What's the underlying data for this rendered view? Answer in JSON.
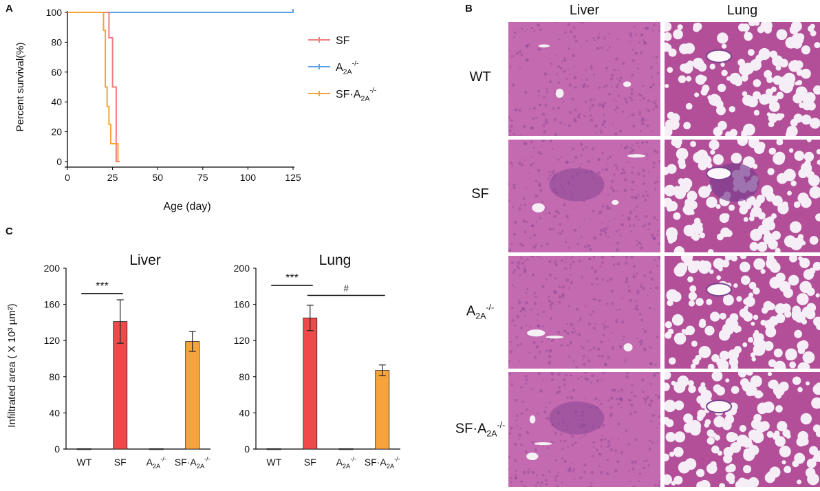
{
  "panel_labels": [
    "A",
    "B",
    "C"
  ],
  "panel_a": {
    "ylabel": "Percent survival(%)",
    "xlabel": "Age (day)",
    "chart_data": {
      "type": "line",
      "subtype": "kaplan-meier step",
      "xlim": [
        0,
        125
      ],
      "ylim": [
        0,
        100
      ],
      "xticks": [
        0,
        25,
        50,
        75,
        100,
        125
      ],
      "yticks": [
        0,
        20,
        40,
        60,
        80,
        100
      ],
      "legend_position": "right",
      "series": [
        {
          "name": "SF",
          "base": "SF",
          "sub": "",
          "sup": "",
          "color": "#f07c7c",
          "x": [
            0,
            23,
            23,
            25,
            25,
            27,
            27,
            29,
            29
          ],
          "y": [
            100,
            100,
            83,
            83,
            50,
            50,
            0,
            0,
            0
          ]
        },
        {
          "name": "A2A-/-",
          "base": "A",
          "sub": "2A",
          "sup": "-/-",
          "color": "#5aa0e6",
          "x": [
            0,
            125
          ],
          "y": [
            100,
            100
          ]
        },
        {
          "name": "SF·A2A-/-",
          "base": "SF·A",
          "sub": "2A",
          "sup": "-/-",
          "color": "#f7a33c",
          "x": [
            0,
            20,
            20,
            21,
            21,
            22,
            22,
            23,
            23,
            24,
            24,
            25,
            25,
            28,
            28
          ],
          "y": [
            100,
            100,
            88,
            88,
            50,
            50,
            37,
            37,
            25,
            25,
            12,
            12,
            12,
            12,
            0
          ]
        }
      ]
    }
  },
  "panel_b": {
    "columns": [
      "Liver",
      "Lung"
    ],
    "rows": [
      {
        "base": "WT",
        "sub": "",
        "sup": ""
      },
      {
        "base": "SF",
        "sub": "",
        "sup": ""
      },
      {
        "base": "A",
        "sub": "2A",
        "sup": "-/-"
      },
      {
        "base": "SF·A",
        "sub": "2A",
        "sup": "-/-"
      }
    ],
    "tissue_colors": {
      "liver": "#c46ab0",
      "lung_bg": "#f6eef6",
      "lung_tissue": "#b24f98",
      "stain_dark": "#7b3f8e"
    }
  },
  "panel_c": {
    "ylabel": "Infiltrated  area ( X 10³ µm²)",
    "chart_data": [
      {
        "type": "bar",
        "title": "Liver",
        "categories": [
          {
            "base": "WT",
            "sub": "",
            "sup": ""
          },
          {
            "base": "SF",
            "sub": "",
            "sup": ""
          },
          {
            "base": "A",
            "sub": "2A",
            "sup": "-/-"
          },
          {
            "base": "SF·A",
            "sub": "2A",
            "sup": "-/-"
          }
        ],
        "values": [
          0.5,
          141,
          0.5,
          119
        ],
        "errors": [
          0,
          24,
          0,
          11
        ],
        "colors": [
          "#444444",
          "#f0494a",
          "#444444",
          "#f7a33c"
        ],
        "ylim": [
          0,
          200
        ],
        "yticks": [
          0,
          40,
          80,
          120,
          160,
          200
        ],
        "annotations": [
          {
            "text": "***",
            "from": 0,
            "to": 1,
            "y": 172
          }
        ]
      },
      {
        "type": "bar",
        "title": "Lung",
        "categories": [
          {
            "base": "WT",
            "sub": "",
            "sup": ""
          },
          {
            "base": "SF",
            "sub": "",
            "sup": ""
          },
          {
            "base": "A",
            "sub": "2A",
            "sup": "-/-"
          },
          {
            "base": "SF·A",
            "sub": "2A",
            "sup": "-/-"
          }
        ],
        "values": [
          0.5,
          145,
          0.5,
          87
        ],
        "errors": [
          0,
          14,
          0,
          6
        ],
        "colors": [
          "#444444",
          "#f0494a",
          "#444444",
          "#f7a33c"
        ],
        "ylim": [
          0,
          200
        ],
        "yticks": [
          0,
          40,
          80,
          120,
          160,
          200
        ],
        "annotations": [
          {
            "text": "***",
            "from": 0,
            "to": 1,
            "y": 181
          },
          {
            "text": "#",
            "from": 1,
            "to": 3,
            "y": 170
          }
        ]
      }
    ]
  }
}
